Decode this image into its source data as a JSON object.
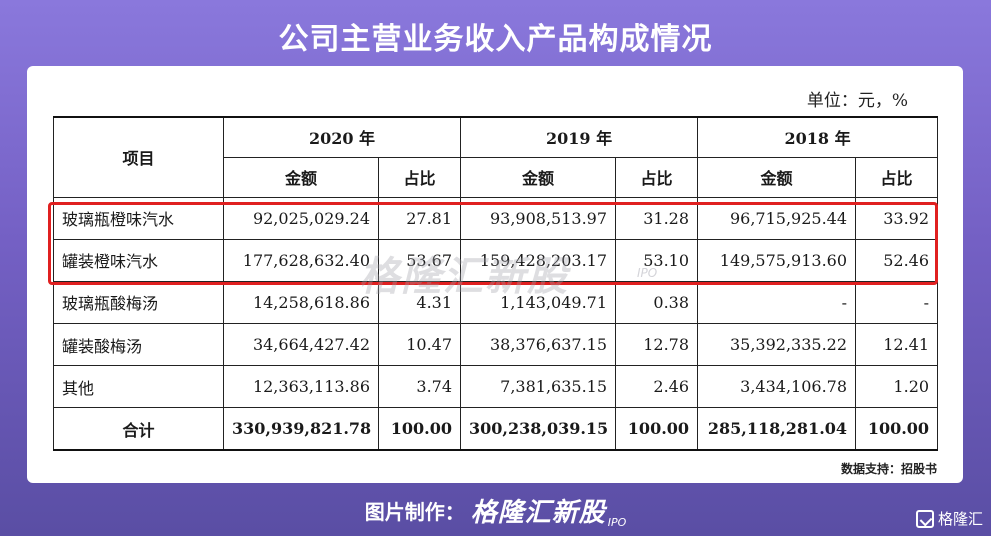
{
  "page_title": "公司主营业务收入产品构成情况",
  "unit_label": "单位：元，%",
  "table": {
    "item_header": "项目",
    "years": [
      "2020 年",
      "2019 年",
      "2018 年"
    ],
    "sub_headers": {
      "amount": "金额",
      "ratio": "占比"
    },
    "rows": [
      {
        "name": "玻璃瓶橙味汽水",
        "values": [
          "92,025,029.24",
          "27.81",
          "93,908,513.97",
          "31.28",
          "96,715,925.44",
          "33.92"
        ]
      },
      {
        "name": "罐装橙味汽水",
        "values": [
          "177,628,632.40",
          "53.67",
          "159,428,203.17",
          "53.10",
          "149,575,913.60",
          "52.46"
        ]
      },
      {
        "name": "玻璃瓶酸梅汤",
        "values": [
          "14,258,618.86",
          "4.31",
          "1,143,049.71",
          "0.38",
          "-",
          "-"
        ]
      },
      {
        "name": "罐装酸梅汤",
        "values": [
          "34,664,427.42",
          "10.47",
          "38,376,637.15",
          "12.78",
          "35,392,335.22",
          "12.41"
        ]
      },
      {
        "name": "其他",
        "values": [
          "12,363,113.86",
          "3.74",
          "7,381,635.15",
          "2.46",
          "3,434,106.78",
          "1.20"
        ]
      }
    ],
    "total": {
      "name": "合计",
      "values": [
        "330,939,821.78",
        "100.00",
        "300,238,039.15",
        "100.00",
        "285,118,281.04",
        "100.00"
      ]
    }
  },
  "watermark": {
    "text": "格隆汇新股",
    "sub": "IPO"
  },
  "source_note": "数据支持：招股书",
  "footer": {
    "label": "图片制作：",
    "brand": "格隆汇新股",
    "ipo": "IPO"
  },
  "corner_logo": "格隆汇",
  "colors": {
    "highlight": "#e02020",
    "background_top": "#8a78dc",
    "background_bottom": "#5a4ea4"
  }
}
